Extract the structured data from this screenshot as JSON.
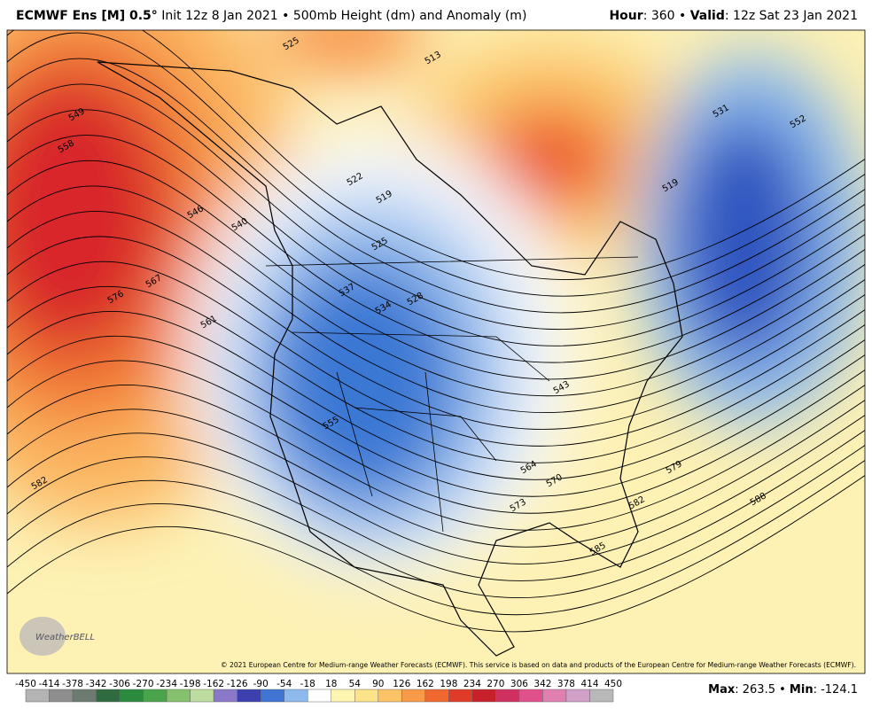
{
  "header": {
    "model": "ECMWF Ens [M] 0.5°",
    "description": "Init 12z 8 Jan 2021 • 500mb Height (dm) and Anomaly (m)",
    "right": [
      "Hour",
      ": 360 • ",
      "Valid",
      ": 12z Sat 23 Jan 2021"
    ]
  },
  "contour_labels": [
    "525",
    "513",
    "549",
    "558",
    "546",
    "540",
    "522",
    "519",
    "531",
    "552",
    "519",
    "525",
    "537",
    "534",
    "528",
    "567",
    "576",
    "561",
    "555",
    "582",
    "564",
    "570",
    "573",
    "579",
    "582",
    "588",
    "585",
    "543"
  ],
  "copyright": "© 2021 European Centre for Medium-range Weather Forecasts (ECMWF). This service is based on data and products of the European Centre for Medium-range Weather Forecasts (ECMWF).",
  "logo": "WeatherBELL",
  "colorbar": {
    "ticks": [
      -450,
      -414,
      -378,
      -342,
      -306,
      -270,
      -234,
      -198,
      -162,
      -126,
      -90,
      -54,
      -18,
      18,
      54,
      90,
      126,
      162,
      198,
      234,
      270,
      306,
      342,
      378,
      414,
      450
    ],
    "colors": [
      "#b4b4b4",
      "#8e8e8e",
      "#6b7b70",
      "#2e6b3e",
      "#2a8a3e",
      "#4aa44c",
      "#86c26e",
      "#bcdca0",
      "#8a78c8",
      "#3b3fb0",
      "#3f74d4",
      "#8db9ee",
      "#ffffff",
      "#fdf5b0",
      "#fde38a",
      "#fbc266",
      "#f89a48",
      "#f0682f",
      "#e03a28",
      "#c8202a",
      "#d03060",
      "#e0508a",
      "#e080b0",
      "#d0a0c8",
      "#b8b8b8"
    ]
  },
  "footer": [
    "Max",
    ": 263.5 • ",
    "Min",
    ": -124.1"
  ]
}
